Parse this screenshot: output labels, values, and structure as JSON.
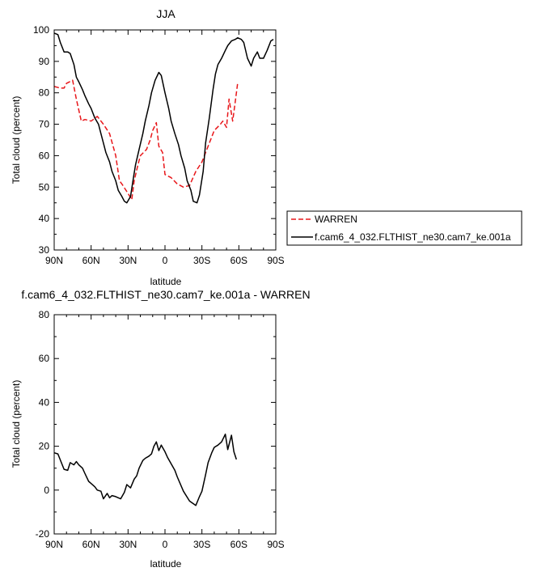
{
  "chart_data": [
    {
      "type": "line",
      "title": "JJA",
      "xlabel": "latitude",
      "ylabel": "Total cloud (percent)",
      "xlim": [
        90,
        -90
      ],
      "ylim": [
        30,
        100
      ],
      "xticks": [
        90,
        60,
        30,
        0,
        -30,
        -60,
        -90
      ],
      "xtick_labels": [
        "90N",
        "60N",
        "30N",
        "0",
        "30S",
        "60S",
        "90S"
      ],
      "yticks": [
        30,
        40,
        50,
        60,
        70,
        80,
        90,
        100
      ],
      "ytick_labels": [
        "30",
        "40",
        "50",
        "60",
        "70",
        "80",
        "90",
        "100"
      ],
      "legend_position": "right-bottom-outside",
      "series": [
        {
          "name": "WARREN",
          "color": "#e8161a",
          "dash": "dashed",
          "x": [
            90,
            85,
            82,
            80,
            75,
            72,
            68,
            65,
            60,
            55,
            50,
            45,
            40,
            37,
            35,
            30,
            27,
            25,
            22,
            20,
            15,
            12,
            10,
            7,
            5,
            2,
            0,
            -5,
            -10,
            -15,
            -20,
            -25,
            -30,
            -35,
            -40,
            -45,
            -47,
            -50,
            -52,
            -55,
            -57,
            -59
          ],
          "y": [
            82,
            81.5,
            81.5,
            83,
            84,
            78,
            71,
            71.5,
            71,
            72.5,
            70,
            67,
            60,
            52,
            51,
            48,
            46,
            52,
            57,
            60,
            62,
            65,
            68,
            70.5,
            63,
            61,
            54,
            53,
            51,
            50,
            50.5,
            55,
            58,
            63,
            68,
            70,
            71,
            69,
            78,
            71,
            77,
            83
          ]
        },
        {
          "name": "f.cam6_4_032.FLTHIST_ne30.cam7_ke.001a",
          "color": "#000000",
          "dash": "solid",
          "x": [
            90,
            87,
            85,
            82,
            79,
            77,
            74,
            72,
            70,
            67,
            65,
            62,
            60,
            57,
            54,
            52,
            50,
            48,
            45,
            43,
            40,
            38,
            35,
            33,
            31,
            28,
            26,
            24,
            21,
            18,
            16,
            13,
            11,
            8,
            5,
            3,
            0,
            -3,
            -5,
            -8,
            -11,
            -13,
            -16,
            -18,
            -21,
            -23,
            -26,
            -28,
            -31,
            -33,
            -36,
            -39,
            -41,
            -43,
            -46,
            -49,
            -51,
            -54,
            -57,
            -59,
            -62,
            -64,
            -67,
            -70,
            -72,
            -75,
            -77,
            -80,
            -83,
            -86,
            -88
          ],
          "y": [
            99,
            98.5,
            96,
            93,
            93,
            92.5,
            89,
            85,
            83.5,
            81,
            79,
            76.5,
            75,
            72,
            70,
            67,
            64,
            61,
            58,
            55,
            52,
            49,
            47,
            45.5,
            45,
            47,
            52,
            57,
            62,
            67,
            71,
            76,
            80,
            84,
            86.5,
            85.5,
            80,
            75,
            71,
            67,
            63.5,
            60,
            56,
            52,
            49,
            45.5,
            45,
            47.5,
            55,
            64,
            72,
            81,
            86,
            89,
            91,
            93.5,
            95,
            96.5,
            97,
            97.5,
            97,
            96,
            91,
            88.5,
            91,
            93,
            91,
            91,
            93.5,
            96.5,
            97
          ]
        }
      ]
    },
    {
      "type": "line",
      "title": "f.cam6_4_032.FLTHIST_ne30.cam7_ke.001a - WARREN",
      "xlabel": "latitude",
      "ylabel": "Total cloud (percent)",
      "xlim": [
        90,
        -90
      ],
      "ylim": [
        -20,
        80
      ],
      "xticks": [
        90,
        60,
        30,
        0,
        -30,
        -60,
        -90
      ],
      "xtick_labels": [
        "90N",
        "60N",
        "30N",
        "0",
        "30S",
        "60S",
        "90S"
      ],
      "yticks": [
        -20,
        0,
        20,
        40,
        60,
        80
      ],
      "ytick_labels": [
        "-20",
        "0",
        "20",
        "40",
        "60",
        "80"
      ],
      "series": [
        {
          "color": "#000000",
          "dash": "solid",
          "x": [
            90,
            87,
            82,
            79,
            77,
            74,
            72,
            70,
            67,
            65,
            62,
            60,
            57,
            55,
            52,
            50,
            47,
            45,
            43,
            40,
            38,
            36,
            33,
            31,
            28,
            25,
            23,
            21,
            18,
            16,
            13,
            11,
            9,
            7,
            5,
            3,
            0,
            -2,
            -5,
            -8,
            -10,
            -15,
            -20,
            -25,
            -28,
            -30,
            -33,
            -35,
            -38,
            -40,
            -43,
            -46,
            -49,
            -51,
            -54,
            -56,
            -58
          ],
          "y": [
            17,
            16.5,
            9.5,
            9,
            12.5,
            11.5,
            13,
            11.5,
            10,
            7.5,
            4,
            3,
            1.5,
            0,
            -0.5,
            -4,
            -1.5,
            -3.5,
            -2.5,
            -3,
            -3.5,
            -4,
            -1,
            2.5,
            1,
            5,
            6.5,
            10,
            13.5,
            14.5,
            15.5,
            16.5,
            20,
            22,
            18,
            20.5,
            17.5,
            15,
            12,
            9,
            6,
            -0.5,
            -5,
            -7,
            -3,
            -0.5,
            7,
            12.5,
            17,
            19.5,
            20.5,
            22,
            25.5,
            18.5,
            25,
            17.5,
            14
          ]
        }
      ]
    }
  ]
}
